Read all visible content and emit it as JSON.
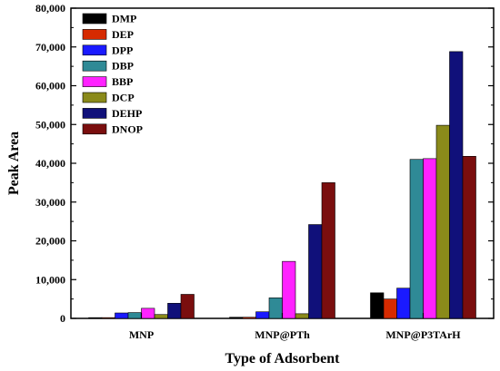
{
  "chart_data": {
    "type": "bar",
    "xlabel": "Type of Adsorbent",
    "ylabel": "Peak Area",
    "ylim": [
      0,
      80000
    ],
    "yticks": [
      0,
      10000,
      20000,
      30000,
      40000,
      50000,
      60000,
      70000,
      80000
    ],
    "ytick_labels": [
      "0",
      "10,000",
      "20,000",
      "30,000",
      "40,000",
      "50,000",
      "60,000",
      "70,000",
      "80,000"
    ],
    "categories": [
      "MNP",
      "MNP@PTh",
      "MNP@P3TArH"
    ],
    "legend_position": "top-left",
    "grid": false,
    "series": [
      {
        "name": "DMP",
        "color": "#000000",
        "values": [
          200,
          300,
          6600
        ]
      },
      {
        "name": "DEP",
        "color": "#d62a00",
        "values": [
          200,
          300,
          5000
        ]
      },
      {
        "name": "DPP",
        "color": "#1a1aff",
        "values": [
          1400,
          1700,
          7800
        ]
      },
      {
        "name": "DBP",
        "color": "#2f8a96",
        "values": [
          1500,
          5300,
          41000
        ]
      },
      {
        "name": "BBP",
        "color": "#ff22ff",
        "values": [
          2600,
          14700,
          41200
        ]
      },
      {
        "name": "DCP",
        "color": "#8a8a1a",
        "values": [
          1000,
          1200,
          49800
        ]
      },
      {
        "name": "DEHP",
        "color": "#10107a",
        "values": [
          3900,
          24200,
          68800
        ]
      },
      {
        "name": "DNOP",
        "color": "#7a0e0e",
        "values": [
          6200,
          35000,
          41800
        ]
      }
    ]
  }
}
